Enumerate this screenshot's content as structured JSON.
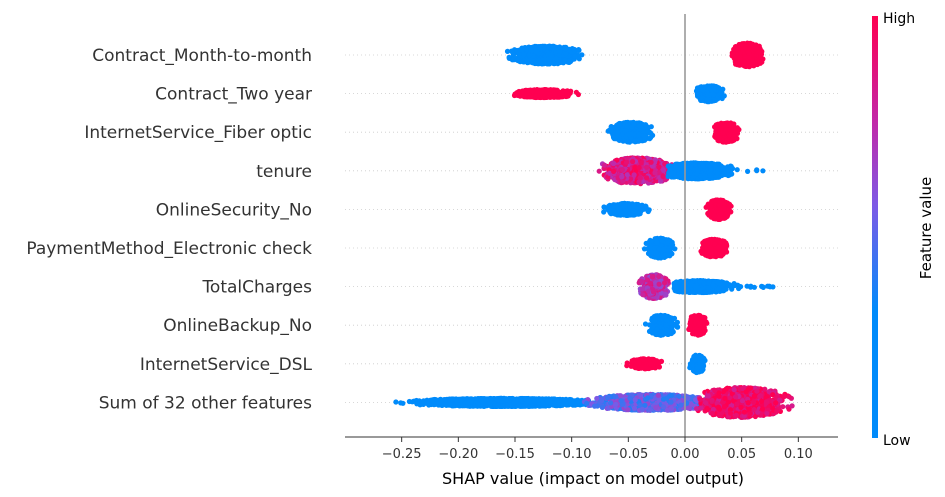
{
  "chart_data": {
    "type": "scatter",
    "subtype": "shap-beeswarm",
    "xlabel": "SHAP value (impact on model output)",
    "xlim": [
      -0.3,
      0.135
    ],
    "xticks": [
      -0.25,
      -0.2,
      -0.15,
      -0.1,
      -0.05,
      0.0,
      0.05,
      0.1
    ],
    "xtick_labels": [
      "−0.25",
      "−0.20",
      "−0.15",
      "−0.10",
      "−0.05",
      "0.00",
      "0.05",
      "0.10"
    ],
    "colorbar": {
      "label": "Feature value",
      "high_label": "High",
      "low_label": "Low",
      "low_color": "#008bfb",
      "high_color": "#ff0051"
    },
    "zero_line": true,
    "features": [
      {
        "name": "Contract_Month-to-month",
        "clusters": [
          {
            "center": -0.122,
            "min": -0.178,
            "max": -0.085,
            "height": 9,
            "feature_value": 0
          },
          {
            "center": 0.055,
            "min": 0.036,
            "max": 0.078,
            "height": 12,
            "feature_value": 1
          }
        ]
      },
      {
        "name": "Contract_Two year",
        "clusters": [
          {
            "center": 0.021,
            "min": 0.01,
            "max": 0.048,
            "height": 8,
            "feature_value": 0
          },
          {
            "center": -0.125,
            "min": -0.171,
            "max": -0.092,
            "height": 4,
            "feature_value": 1
          }
        ]
      },
      {
        "name": "InternetService_Fiber optic",
        "clusters": [
          {
            "center": -0.048,
            "min": -0.085,
            "max": -0.028,
            "height": 10,
            "feature_value": 0
          },
          {
            "center": 0.036,
            "min": 0.022,
            "max": 0.055,
            "height": 10,
            "feature_value": 1
          }
        ]
      },
      {
        "name": "tenure",
        "clusters": [
          {
            "center": -0.042,
            "min": -0.099,
            "max": -0.005,
            "height": 13,
            "feature_value": 0.85
          },
          {
            "center": 0.01,
            "min": -0.015,
            "max": 0.08,
            "height": 8,
            "feature_value": 0.1
          }
        ]
      },
      {
        "name": "OnlineSecurity_No",
        "clusters": [
          {
            "center": -0.052,
            "min": -0.079,
            "max": -0.025,
            "height": 6,
            "feature_value": 0
          },
          {
            "center": 0.03,
            "min": 0.018,
            "max": 0.048,
            "height": 10,
            "feature_value": 1
          }
        ]
      },
      {
        "name": "PaymentMethod_Electronic check",
        "clusters": [
          {
            "center": -0.022,
            "min": -0.043,
            "max": -0.007,
            "height": 10,
            "feature_value": 0
          },
          {
            "center": 0.026,
            "min": 0.012,
            "max": 0.047,
            "height": 9,
            "feature_value": 1
          }
        ]
      },
      {
        "name": "TotalCharges",
        "clusters": [
          {
            "center": -0.027,
            "min": -0.052,
            "max": -0.013,
            "height": 12,
            "feature_value": 0.75
          },
          {
            "center": 0.012,
            "min": -0.01,
            "max": 0.08,
            "height": 6,
            "feature_value": 0.05
          }
        ]
      },
      {
        "name": "OnlineBackup_No",
        "clusters": [
          {
            "center": -0.02,
            "min": -0.046,
            "max": -0.005,
            "height": 10,
            "feature_value": 0
          },
          {
            "center": 0.011,
            "min": 0.002,
            "max": 0.028,
            "height": 10,
            "feature_value": 1
          }
        ]
      },
      {
        "name": "InternetService_DSL",
        "clusters": [
          {
            "center": -0.035,
            "min": -0.057,
            "max": -0.015,
            "height": 5,
            "feature_value": 1
          },
          {
            "center": 0.011,
            "min": 0.001,
            "max": 0.02,
            "height": 9,
            "feature_value": 0
          }
        ]
      },
      {
        "name": "Sum of 32 other features",
        "clusters": [
          {
            "center": -0.16,
            "min": -0.278,
            "max": -0.04,
            "height": 4,
            "feature_value": 0.05
          },
          {
            "center": -0.03,
            "min": -0.115,
            "max": 0.04,
            "height": 8,
            "feature_value": 0.5
          },
          {
            "center": 0.05,
            "min": 0.0,
            "max": 0.118,
            "height": 15,
            "feature_value": 0.95
          }
        ]
      }
    ]
  }
}
